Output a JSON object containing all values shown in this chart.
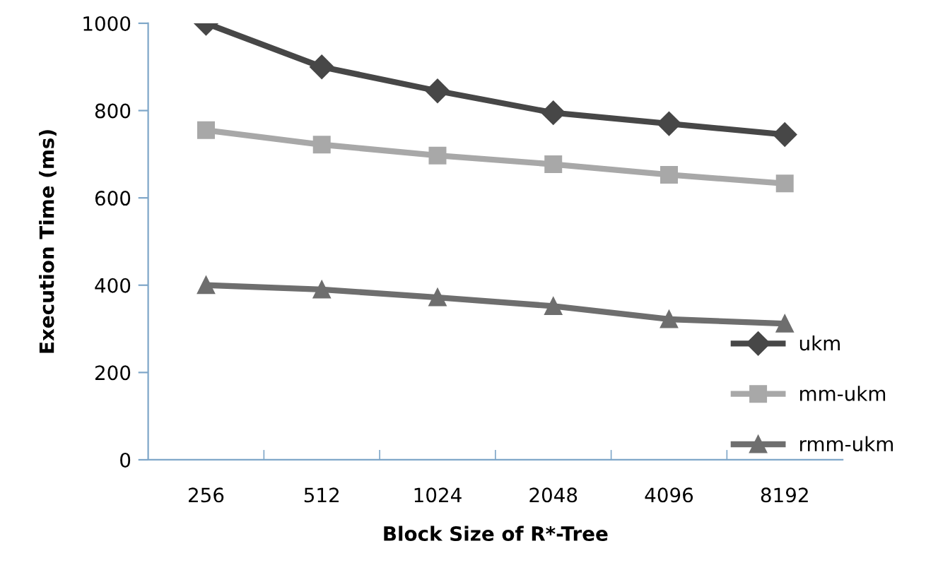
{
  "chart_data": {
    "type": "line",
    "xlabel": "Block Size of R*-Tree",
    "ylabel": "Execution Time (ms)",
    "categories": [
      "256",
      "512",
      "1024",
      "2048",
      "4096",
      "8192"
    ],
    "series": [
      {
        "name": "ukm",
        "color": "#474747",
        "values": [
          1000,
          900,
          845,
          795,
          770,
          745
        ],
        "marker": "diamond"
      },
      {
        "name": "mm-ukm",
        "color": "#a8a8a8",
        "values": [
          755,
          722,
          697,
          677,
          653,
          633
        ],
        "marker": "square"
      },
      {
        "name": "rmm-ukm",
        "color": "#6e6e6e",
        "values": [
          400,
          390,
          372,
          352,
          322,
          312
        ],
        "marker": "triangle"
      }
    ],
    "ylim": [
      0,
      1000
    ],
    "yticks": [
      0,
      200,
      400,
      600,
      800,
      1000
    ],
    "grid": false,
    "legend": "bottom right"
  }
}
